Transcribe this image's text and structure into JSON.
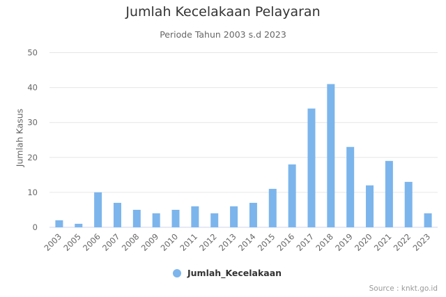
{
  "header": {
    "title": "Jumlah Kecelakaan Pelayaran",
    "subtitle": "Periode Tahun 2003 s.d 2023"
  },
  "legend": {
    "label": "Jumlah_Kecelakaan",
    "color": "#7cb5ec"
  },
  "credits": {
    "text": "Source : knkt.go.id"
  },
  "chart_data": {
    "type": "bar",
    "title": "Jumlah Kecelakaan Pelayaran",
    "subtitle": "Periode Tahun 2003 s.d 2023",
    "xlabel": "",
    "ylabel": "Jumlah Kasus",
    "ylim": [
      0,
      50
    ],
    "yticks": [
      0,
      10,
      20,
      30,
      40,
      50
    ],
    "grid": true,
    "legend_position": "bottom",
    "categories": [
      "2003",
      "2005",
      "2006",
      "2007",
      "2008",
      "2009",
      "2010",
      "2011",
      "2012",
      "2013",
      "2014",
      "2015",
      "2016",
      "2017",
      "2018",
      "2019",
      "2020",
      "2021",
      "2022",
      "2023"
    ],
    "series": [
      {
        "name": "Jumlah_Kecelakaan",
        "color": "#7cb5ec",
        "values": [
          2,
          1,
          10,
          7,
          5,
          4,
          5,
          6,
          4,
          6,
          7,
          11,
          18,
          34,
          41,
          23,
          12,
          19,
          13,
          4
        ]
      }
    ]
  }
}
